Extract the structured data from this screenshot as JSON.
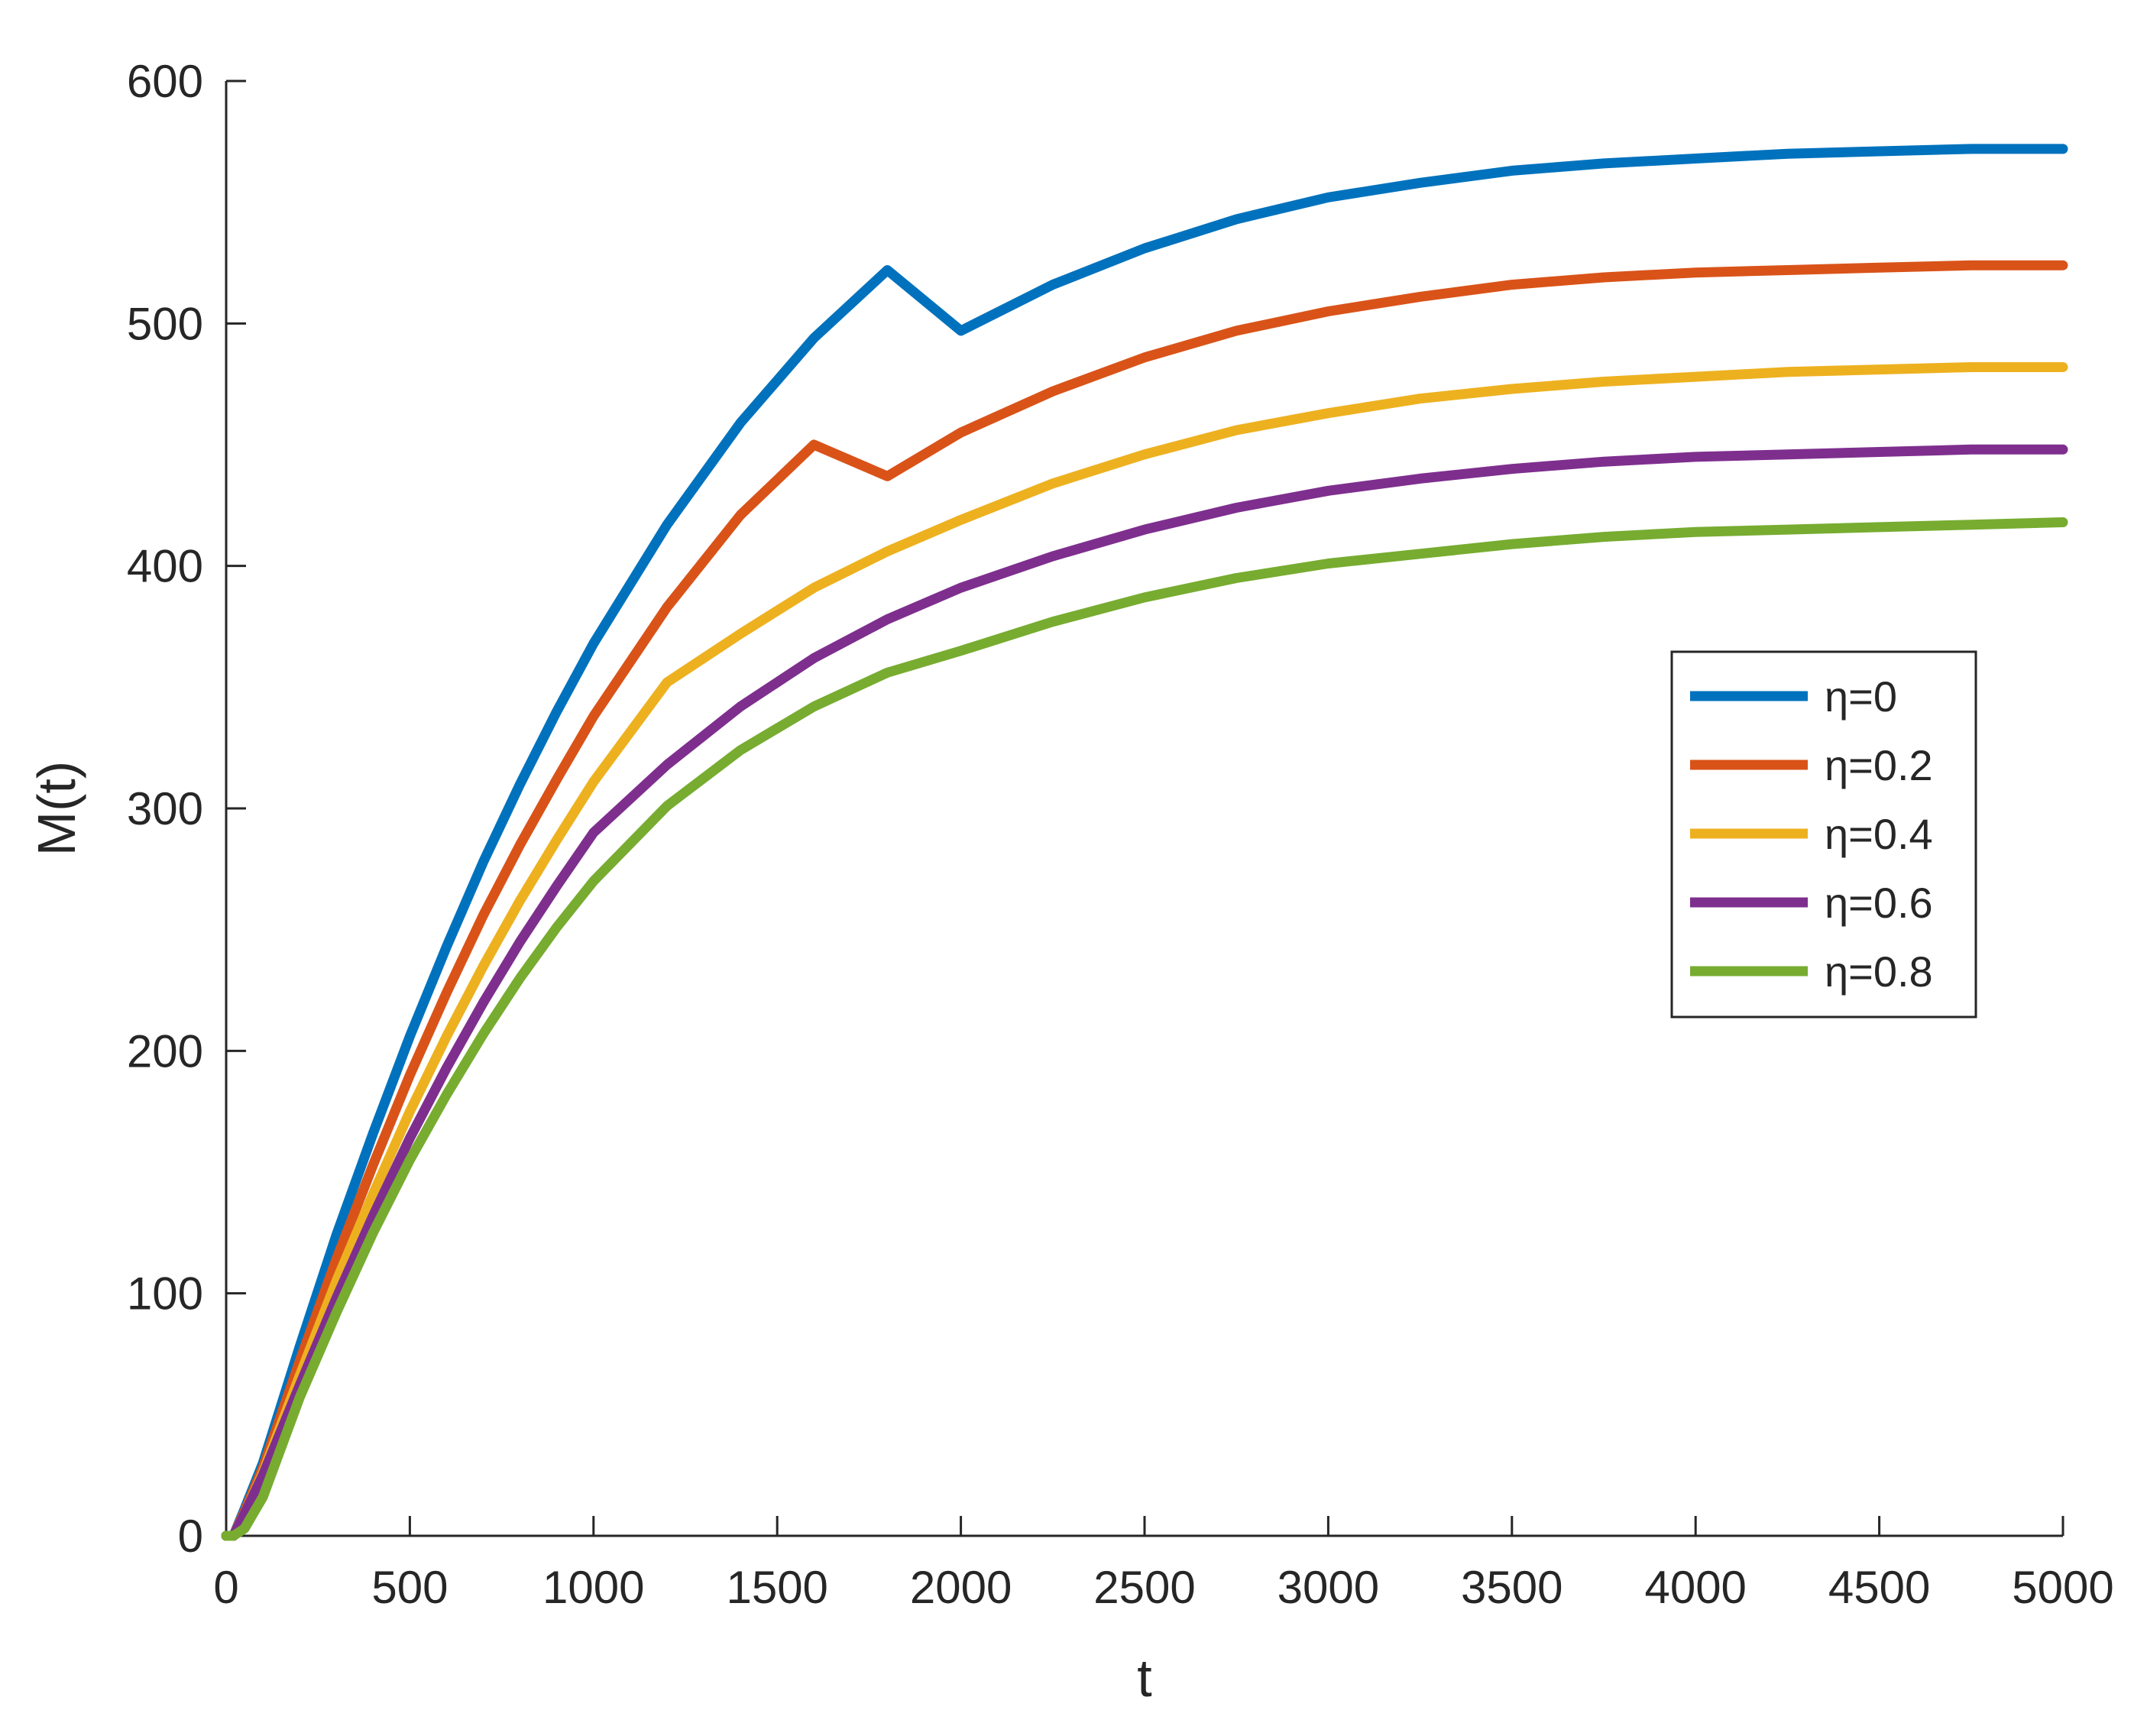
{
  "chart_data": {
    "type": "line",
    "title": "",
    "xlabel": "t",
    "ylabel": "M(t)",
    "xlim": [
      0,
      5000
    ],
    "ylim": [
      0,
      600
    ],
    "xticks": [
      "0",
      "500",
      "1000",
      "1500",
      "2000",
      "2500",
      "3000",
      "3500",
      "4000",
      "4500",
      "5000"
    ],
    "yticks": [
      "0",
      "100",
      "200",
      "300",
      "400",
      "500",
      "600"
    ],
    "grid": false,
    "legend_position": "right, mid-height",
    "x": [
      0,
      20,
      50,
      100,
      200,
      300,
      400,
      500,
      600,
      700,
      800,
      900,
      1000,
      1200,
      1400,
      1600,
      1800,
      2000,
      2250,
      2500,
      2750,
      3000,
      3250,
      3500,
      3750,
      4000,
      4250,
      4500,
      4750,
      5000
    ],
    "series": [
      {
        "name": "η=0",
        "color": "#0072BD",
        "values": [
          0,
          0,
          11,
          30,
          78,
          124,
          166,
          206,
          243,
          278,
          310,
          340,
          368,
          417,
          459,
          494,
          522,
          497,
          516,
          531,
          543,
          552,
          558,
          563,
          566,
          568,
          570,
          571,
          572,
          572
        ]
      },
      {
        "name": "η=0.2",
        "color": "#D95319",
        "values": [
          0,
          0,
          10,
          28,
          72,
          114,
          153,
          190,
          224,
          256,
          285,
          312,
          338,
          383,
          421,
          450,
          437,
          455,
          472,
          486,
          497,
          505,
          511,
          516,
          519,
          521,
          522,
          523,
          524,
          524
        ]
      },
      {
        "name": "η=0.4",
        "color": "#EDB120",
        "values": [
          0,
          0,
          9,
          26,
          66,
          105,
          141,
          175,
          206,
          235,
          262,
          287,
          311,
          352,
          372,
          391,
          406,
          419,
          434,
          446,
          456,
          463,
          469,
          473,
          476,
          478,
          480,
          481,
          482,
          482
        ]
      },
      {
        "name": "η=0.6",
        "color": "#7E2F8E",
        "values": [
          0,
          0,
          9,
          25,
          62,
          98,
          132,
          164,
          193,
          220,
          245,
          268,
          290,
          318,
          342,
          362,
          378,
          391,
          404,
          415,
          424,
          431,
          436,
          440,
          443,
          445,
          446,
          447,
          448,
          448
        ]
      },
      {
        "name": "η=0.8",
        "color": "#77AC30",
        "values": [
          0,
          0,
          3,
          16,
          57,
          92,
          125,
          155,
          182,
          207,
          230,
          251,
          270,
          301,
          324,
          342,
          356,
          365,
          377,
          387,
          395,
          401,
          405,
          409,
          412,
          414,
          415,
          416,
          417,
          418
        ]
      }
    ]
  }
}
